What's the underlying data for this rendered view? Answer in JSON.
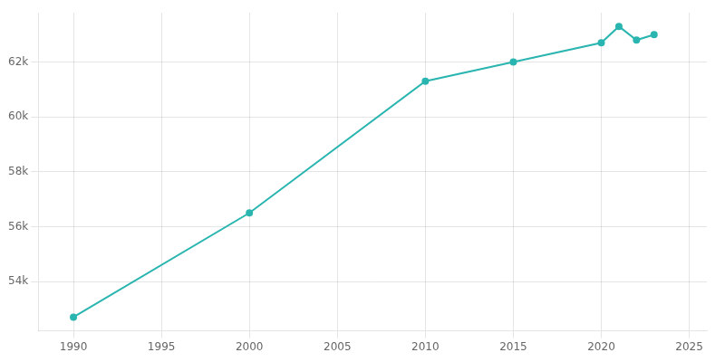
{
  "chart_data": {
    "type": "line",
    "x": [
      1990,
      2000,
      2010,
      2015,
      2020,
      2021,
      2022,
      2023
    ],
    "values": [
      52700,
      56500,
      61300,
      62000,
      62700,
      63300,
      62800,
      63000
    ],
    "color": "#2ab5b0",
    "marker": "circle",
    "xlim": [
      1988,
      2026
    ],
    "xticks": [
      1990,
      1995,
      2000,
      2005,
      2010,
      2015,
      2020,
      2025
    ],
    "ylim": [
      52200,
      63800
    ],
    "yticks": [
      {
        "value": 54000,
        "label": "54k"
      },
      {
        "value": 56000,
        "label": "56k"
      },
      {
        "value": 58000,
        "label": "58k"
      },
      {
        "value": 60000,
        "label": "60k"
      },
      {
        "value": 62000,
        "label": "62k"
      }
    ],
    "grid": true
  }
}
